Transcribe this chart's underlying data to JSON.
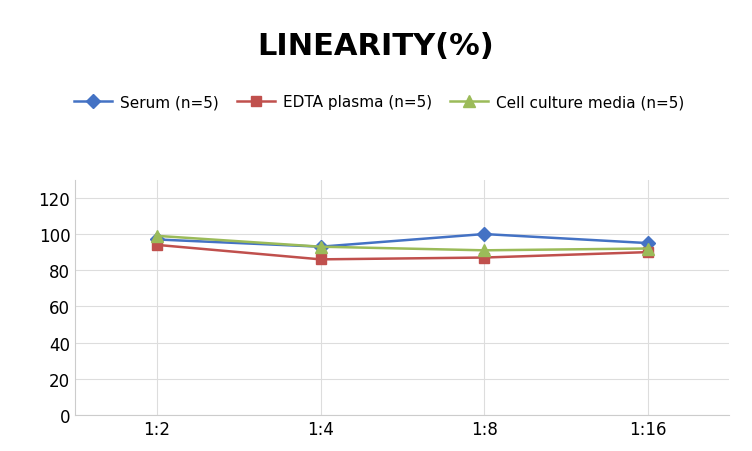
{
  "title": "LINEARITY(%)",
  "x_labels": [
    "1:2",
    "1:4",
    "1:8",
    "1:16"
  ],
  "x_positions": [
    0,
    1,
    2,
    3
  ],
  "series": [
    {
      "label": "Serum (n=5)",
      "values": [
        97,
        93,
        100,
        95
      ],
      "color": "#4472C4",
      "marker": "D",
      "markersize": 7,
      "linewidth": 1.8
    },
    {
      "label": "EDTA plasma (n=5)",
      "values": [
        94,
        86,
        87,
        90
      ],
      "color": "#C0504D",
      "marker": "s",
      "markersize": 7,
      "linewidth": 1.8
    },
    {
      "label": "Cell culture media (n=5)",
      "values": [
        99,
        93,
        91,
        92
      ],
      "color": "#9BBB59",
      "marker": "^",
      "markersize": 8,
      "linewidth": 1.8
    }
  ],
  "ylim": [
    0,
    130
  ],
  "yticks": [
    0,
    20,
    40,
    60,
    80,
    100,
    120
  ],
  "grid_color": "#DDDDDD",
  "background_color": "#FFFFFF",
  "title_fontsize": 22,
  "legend_fontsize": 11,
  "tick_fontsize": 12
}
